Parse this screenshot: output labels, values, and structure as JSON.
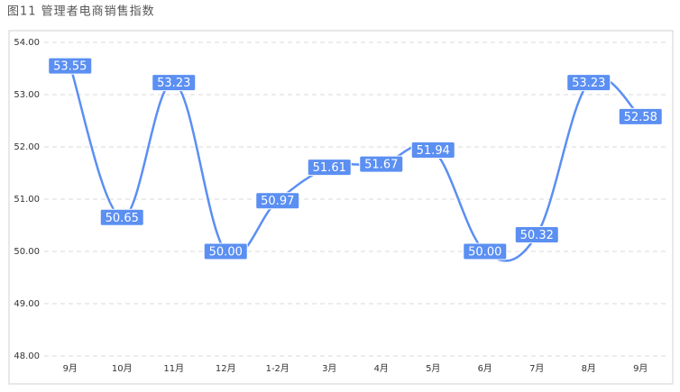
{
  "chart_data": {
    "type": "line",
    "title": "图11 管理者电商销售指数",
    "categories": [
      "9月",
      "10月",
      "11月",
      "12月",
      "1-2月",
      "3月",
      "4月",
      "5月",
      "6月",
      "7月",
      "8月",
      "9月"
    ],
    "values": [
      53.55,
      50.65,
      53.23,
      50.0,
      50.97,
      51.61,
      51.67,
      51.94,
      50.0,
      50.32,
      53.23,
      52.58
    ],
    "value_labels": [
      "53.55",
      "50.65",
      "53.23",
      "50.00",
      "50.97",
      "51.61",
      "51.67",
      "51.94",
      "50.00",
      "50.32",
      "53.23",
      "52.58"
    ],
    "color": "#5b8ff2",
    "ylim": [
      48,
      54
    ],
    "yticks": [
      {
        "value": 48,
        "label": "48.00"
      },
      {
        "value": 49,
        "label": "49.00"
      },
      {
        "value": 50,
        "label": "50.00"
      },
      {
        "value": 51,
        "label": "51.00"
      },
      {
        "value": 52,
        "label": "52.00"
      },
      {
        "value": 53,
        "label": "53.00"
      },
      {
        "value": 54,
        "label": "54.00"
      }
    ],
    "grid": true
  }
}
